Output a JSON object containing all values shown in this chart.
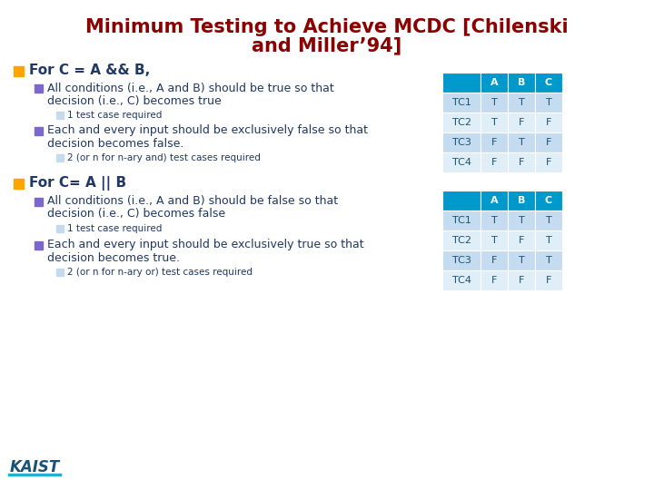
{
  "title_line1": "Minimum Testing to Achieve MCDC [Chilenski",
  "title_line2": "and Miller’94]",
  "title_color": "#8B0000",
  "bg_color": "#FFFFFF",
  "bullet_color_orange": "#FFA500",
  "bullet_color_blue": "#7B68C8",
  "text_color_dark": "#1F3864",
  "table_header_color": "#0099CC",
  "table_row_light": "#C5DCF0",
  "table_row_lighter": "#E0EEF8",
  "table_text_color": "#1A5276",
  "table_header_text": "#FFFFFF",
  "section1_bullet": "For C = A && B,",
  "section1_sub1_line1": "All conditions (i.e., A and B) should be true so that",
  "section1_sub1_line2": "decision (i.e., C) becomes true",
  "section1_sub1_note": "1 test case required",
  "section1_sub2_line1": "Each and every input should be exclusively false so that",
  "section1_sub2_line2": "decision becomes false.",
  "section1_sub2_note": "2 (or n for n-ary and) test cases required",
  "section2_bullet": "For C= A || B",
  "section2_sub1_line1": "All conditions (i.e., A and B) should be false so that",
  "section2_sub1_line2": "decision (i.e., C) becomes false",
  "section2_sub1_note": "1 test case required",
  "section2_sub2_line1": "Each and every input should be exclusively true so that",
  "section2_sub2_line2": "decision becomes true.",
  "section2_sub2_note": "2 (or n for n-ary or) test cases required",
  "table1_headers": [
    "",
    "A",
    "B",
    "C"
  ],
  "table1_rows": [
    [
      "TC1",
      "T",
      "T",
      "T"
    ],
    [
      "TC2",
      "T",
      "F",
      "F"
    ],
    [
      "TC3",
      "F",
      "T",
      "F"
    ],
    [
      "TC4",
      "F",
      "F",
      "F"
    ]
  ],
  "table2_headers": [
    "",
    "A",
    "B",
    "C"
  ],
  "table2_rows": [
    [
      "TC1",
      "T",
      "T",
      "T"
    ],
    [
      "TC2",
      "T",
      "F",
      "T"
    ],
    [
      "TC3",
      "F",
      "T",
      "T"
    ],
    [
      "TC4",
      "F",
      "F",
      "F"
    ]
  ],
  "kaist_text_color": "#1A5276",
  "kaist_line_color": "#20B0D0"
}
